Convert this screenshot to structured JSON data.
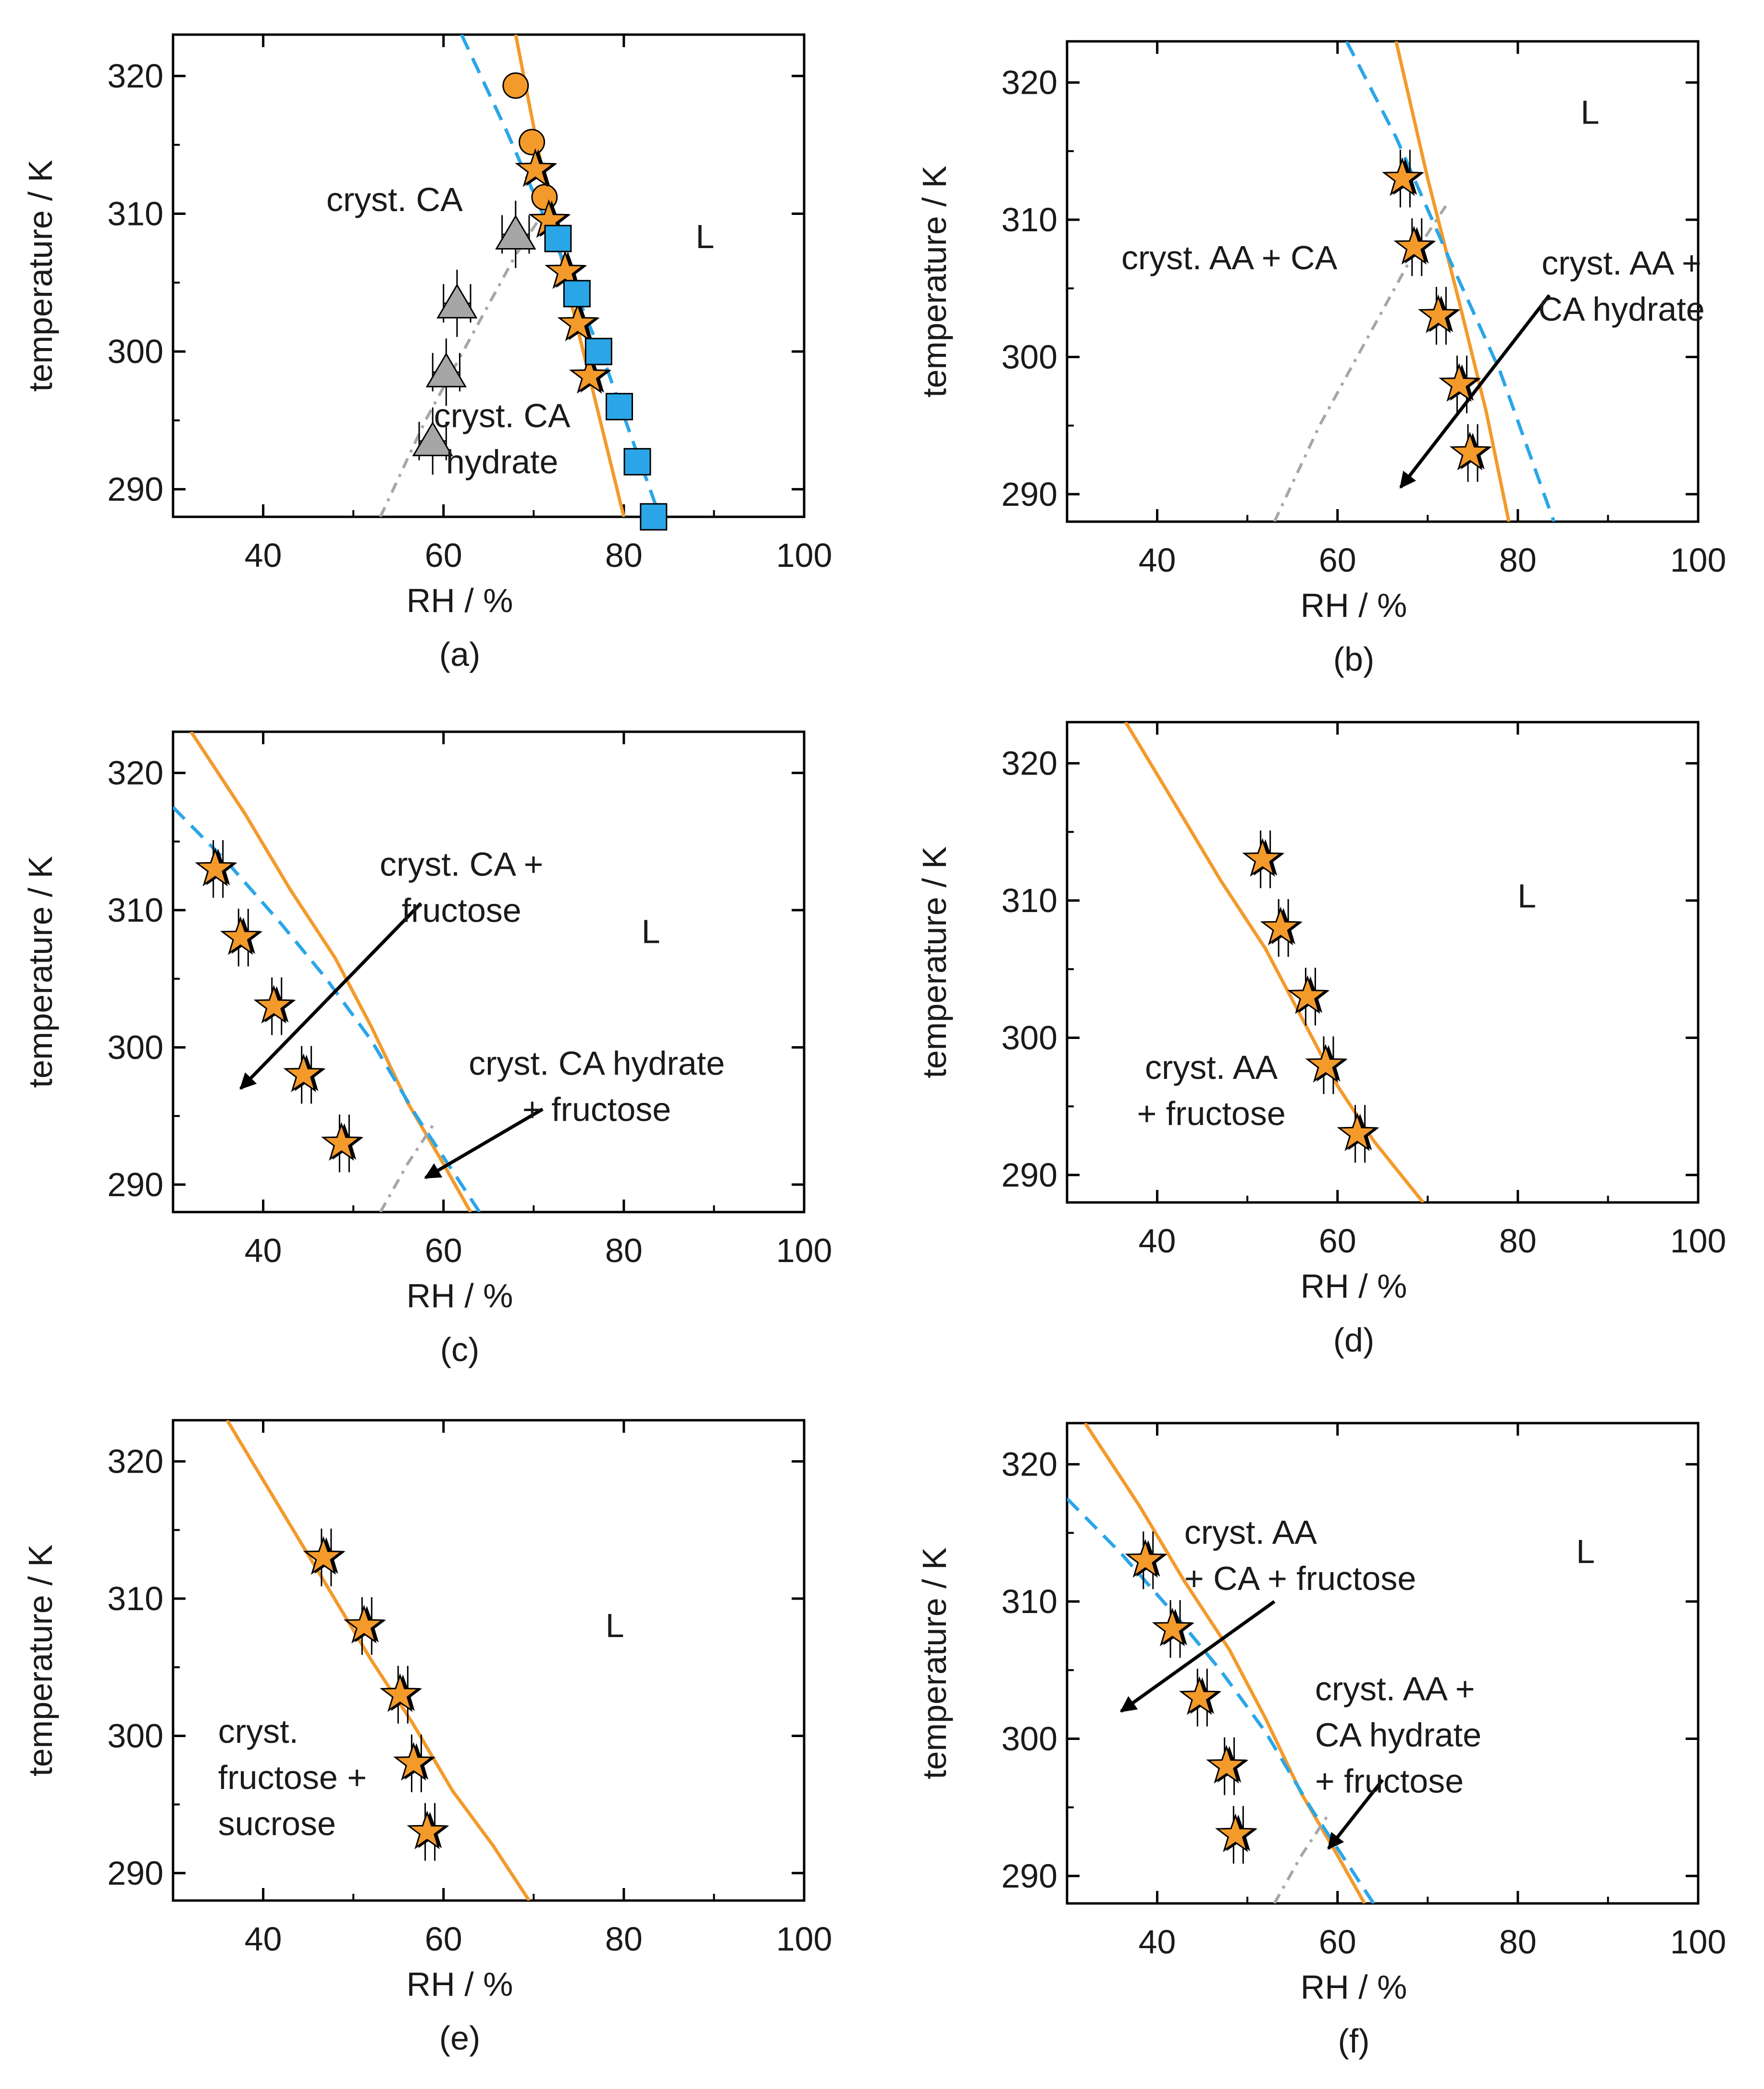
{
  "figure": {
    "palette": {
      "orange": "#f39a2b",
      "blue": "#2aa6e8",
      "grey": "#a6a6a6",
      "black": "#000000"
    }
  },
  "chart_data": [
    {
      "id": "a",
      "type": "scatter",
      "caption": "(a)",
      "xlabel": "RH / %",
      "ylabel": "temperature / K",
      "xlim": [
        30,
        100
      ],
      "ylim": [
        288,
        323
      ],
      "xticks": [
        40,
        60,
        80,
        100
      ],
      "yticks": [
        290,
        300,
        310,
        320
      ],
      "lines": [
        {
          "name": "orange-solid",
          "color": "#f39a2b",
          "dash": "solid",
          "points": [
            [
              68,
              323
            ],
            [
              71,
              313
            ],
            [
              74,
              304
            ],
            [
              77,
              296
            ],
            [
              80,
              288
            ]
          ]
        },
        {
          "name": "blue-dashed",
          "color": "#2aa6e8",
          "dash": "dashed",
          "points": [
            [
              62,
              323
            ],
            [
              67,
              316
            ],
            [
              73,
              307
            ],
            [
              78,
              299
            ],
            [
              84,
              288
            ]
          ]
        },
        {
          "name": "grey-dashdot",
          "color": "#a6a6a6",
          "dash": "dashdot",
          "points": [
            [
              53,
              288
            ],
            [
              58,
              295
            ],
            [
              63,
              301
            ],
            [
              68,
              307
            ],
            [
              72,
              311
            ]
          ]
        }
      ],
      "series": [
        {
          "name": "orange-circles",
          "marker": "circle",
          "color": "#f39a2b",
          "points": [
            [
              68,
              319.3
            ],
            [
              69.8,
              315.2
            ],
            [
              71.2,
              311.2
            ]
          ],
          "xerr": 0
        },
        {
          "name": "orange-stars",
          "marker": "star",
          "color": "#f39a2b",
          "points": [
            [
              70.5,
              313.2
            ],
            [
              72,
              309.5
            ],
            [
              73.8,
              305.8
            ],
            [
              75.2,
              302
            ],
            [
              76.5,
              298.2
            ]
          ],
          "xerr": 0
        },
        {
          "name": "blue-squares",
          "marker": "square",
          "color": "#2aa6e8",
          "points": [
            [
              72.7,
              308.2
            ],
            [
              74.8,
              304.2
            ],
            [
              77.2,
              300
            ],
            [
              79.5,
              296
            ],
            [
              81.5,
              292
            ],
            [
              83.3,
              288
            ]
          ],
          "xerr": 0
        },
        {
          "name": "grey-triangles",
          "marker": "triangle",
          "color": "#a6a6a6",
          "points": [
            [
              68,
              308.5
            ],
            [
              61.5,
              303.5
            ],
            [
              60.3,
              298.5
            ],
            [
              58.8,
              293.5
            ]
          ],
          "xerr": 1.5
        }
      ],
      "annotations": [
        {
          "lines": [
            "cryst. CA"
          ],
          "x": 47,
          "y": 310.2,
          "anchor": "start"
        },
        {
          "lines": [
            "L"
          ],
          "x": 89,
          "y": 307.5,
          "anchor": "middle"
        },
        {
          "lines": [
            "cryst. CA",
            "hydrate"
          ],
          "x": 66.5,
          "y": 294.5,
          "anchor": "middle"
        }
      ],
      "arrows": []
    },
    {
      "id": "b",
      "type": "scatter",
      "caption": "(b)",
      "xlabel": "RH / %",
      "ylabel": "temperature / K",
      "xlim": [
        30,
        100
      ],
      "ylim": [
        288,
        323
      ],
      "xticks": [
        40,
        60,
        80,
        100
      ],
      "yticks": [
        290,
        300,
        310,
        320
      ],
      "lines": [
        {
          "name": "orange-solid",
          "color": "#f39a2b",
          "dash": "solid",
          "points": [
            [
              66.5,
              323
            ],
            [
              70,
              313
            ],
            [
              73.5,
              304
            ],
            [
              76.5,
              296
            ],
            [
              79,
              288
            ]
          ]
        },
        {
          "name": "blue-dashed",
          "color": "#2aa6e8",
          "dash": "dashed",
          "points": [
            [
              61,
              323
            ],
            [
              66.5,
              316
            ],
            [
              72.5,
              307
            ],
            [
              78,
              299
            ],
            [
              84,
              288
            ]
          ]
        },
        {
          "name": "grey-dashdot",
          "color": "#a6a6a6",
          "dash": "dashdot",
          "points": [
            [
              53,
              288
            ],
            [
              58,
              295
            ],
            [
              63,
              301
            ],
            [
              68,
              307
            ],
            [
              72,
              311
            ]
          ]
        }
      ],
      "series": [
        {
          "name": "orange-stars",
          "marker": "star",
          "color": "#f39a2b",
          "points": [
            [
              67.5,
              313
            ],
            [
              68.8,
              308
            ],
            [
              71.5,
              303
            ],
            [
              73.8,
              298
            ],
            [
              75,
              293
            ]
          ],
          "xerr": 1
        }
      ],
      "annotations": [
        {
          "lines": [
            "L"
          ],
          "x": 88,
          "y": 317,
          "anchor": "middle"
        },
        {
          "lines": [
            "cryst. AA + CA"
          ],
          "x": 48,
          "y": 306.4,
          "anchor": "middle"
        },
        {
          "lines": [
            "cryst. AA +",
            "CA hydrate"
          ],
          "x": 91.5,
          "y": 306,
          "anchor": "middle"
        }
      ],
      "arrows": [
        {
          "from": [
            83.5,
            304.5
          ],
          "to": [
            67,
            290.5
          ]
        }
      ]
    },
    {
      "id": "c",
      "type": "scatter",
      "caption": "(c)",
      "xlabel": "RH / %",
      "ylabel": "temperature / K",
      "xlim": [
        30,
        100
      ],
      "ylim": [
        288,
        323
      ],
      "xticks": [
        40,
        60,
        80,
        100
      ],
      "yticks": [
        290,
        300,
        310,
        320
      ],
      "lines": [
        {
          "name": "orange-solid",
          "color": "#f39a2b",
          "dash": "solid",
          "points": [
            [
              32,
              323
            ],
            [
              38,
              317
            ],
            [
              43,
              311.5
            ],
            [
              48,
              306.5
            ],
            [
              52,
              301.5
            ],
            [
              56,
              296
            ],
            [
              60,
              291.5
            ],
            [
              63,
              288
            ]
          ]
        },
        {
          "name": "blue-dashed",
          "color": "#2aa6e8",
          "dash": "dashed",
          "points": [
            [
              30,
              317.5
            ],
            [
              36,
              313.5
            ],
            [
              42,
              309
            ],
            [
              47,
              305
            ],
            [
              52,
              300.5
            ],
            [
              57,
              295
            ],
            [
              61,
              291
            ],
            [
              64,
              288
            ]
          ]
        },
        {
          "name": "grey-dashdot",
          "color": "#a6a6a6",
          "dash": "dashdot",
          "points": [
            [
              53,
              288
            ],
            [
              56,
              291.5
            ],
            [
              59,
              294.5
            ]
          ]
        }
      ],
      "series": [
        {
          "name": "orange-stars",
          "marker": "star",
          "color": "#f39a2b",
          "points": [
            [
              35,
              313
            ],
            [
              37.8,
              308
            ],
            [
              41.5,
              303
            ],
            [
              44.8,
              298
            ],
            [
              49,
              293
            ]
          ],
          "xerr": 1
        }
      ],
      "annotations": [
        {
          "lines": [
            "cryst. CA +",
            "fructose"
          ],
          "x": 62,
          "y": 312.5,
          "anchor": "middle"
        },
        {
          "lines": [
            "L"
          ],
          "x": 83,
          "y": 307.6,
          "anchor": "middle"
        },
        {
          "lines": [
            "cryst. CA hydrate",
            "+ fructose"
          ],
          "x": 77,
          "y": 298,
          "anchor": "middle"
        }
      ],
      "arrows": [
        {
          "from": [
            57.5,
            310.5
          ],
          "to": [
            37.5,
            297
          ]
        },
        {
          "from": [
            71,
            295.5
          ],
          "to": [
            58,
            290.5
          ]
        }
      ]
    },
    {
      "id": "d",
      "type": "scatter",
      "caption": "(d)",
      "xlabel": "RH / %",
      "ylabel": "temperature / K",
      "xlim": [
        30,
        100
      ],
      "ylim": [
        288,
        323
      ],
      "xticks": [
        40,
        60,
        80,
        100
      ],
      "yticks": [
        290,
        300,
        310,
        320
      ],
      "lines": [
        {
          "name": "orange-solid",
          "color": "#f39a2b",
          "dash": "solid",
          "points": [
            [
              36.5,
              323
            ],
            [
              42,
              317
            ],
            [
              47,
              311.5
            ],
            [
              52,
              306.5
            ],
            [
              56,
              301.5
            ],
            [
              60,
              296.5
            ],
            [
              64,
              292.5
            ],
            [
              69.5,
              288
            ]
          ]
        }
      ],
      "series": [
        {
          "name": "orange-stars",
          "marker": "star",
          "color": "#f39a2b",
          "points": [
            [
              52,
              313
            ],
            [
              54,
              308
            ],
            [
              57,
              303
            ],
            [
              59,
              298
            ],
            [
              62.5,
              293
            ]
          ],
          "xerr": 1
        }
      ],
      "annotations": [
        {
          "lines": [
            "L"
          ],
          "x": 81,
          "y": 309.5,
          "anchor": "middle"
        },
        {
          "lines": [
            "cryst. AA",
            "+ fructose"
          ],
          "x": 46,
          "y": 297,
          "anchor": "middle"
        }
      ],
      "arrows": []
    },
    {
      "id": "e",
      "type": "scatter",
      "caption": "(e)",
      "xlabel": "RH / %",
      "ylabel": "temperature / K",
      "xlim": [
        30,
        100
      ],
      "ylim": [
        288,
        323
      ],
      "xticks": [
        40,
        60,
        80,
        100
      ],
      "yticks": [
        290,
        300,
        310,
        320
      ],
      "lines": [
        {
          "name": "orange-solid",
          "color": "#f39a2b",
          "dash": "solid",
          "points": [
            [
              36,
              323
            ],
            [
              41.5,
              317
            ],
            [
              47,
              311
            ],
            [
              52,
              305.5
            ],
            [
              56.5,
              301
            ],
            [
              61,
              296
            ],
            [
              65.5,
              292
            ],
            [
              69.5,
              288
            ]
          ]
        }
      ],
      "series": [
        {
          "name": "orange-stars",
          "marker": "star",
          "color": "#f39a2b",
          "points": [
            [
              47,
              313
            ],
            [
              51.5,
              308
            ],
            [
              55.5,
              303
            ],
            [
              57,
              298
            ],
            [
              58.5,
              293
            ]
          ],
          "xerr": 1
        }
      ],
      "annotations": [
        {
          "lines": [
            "L"
          ],
          "x": 79,
          "y": 307.2,
          "anchor": "middle"
        },
        {
          "lines": [
            "cryst.",
            "fructose +",
            "sucrose"
          ],
          "x": 35,
          "y": 299.5,
          "anchor": "start"
        }
      ],
      "arrows": []
    },
    {
      "id": "f",
      "type": "scatter",
      "caption": "(f)",
      "xlabel": "RH / %",
      "ylabel": "temperature / K",
      "xlim": [
        30,
        100
      ],
      "ylim": [
        288,
        323
      ],
      "xticks": [
        40,
        60,
        80,
        100
      ],
      "yticks": [
        290,
        300,
        310,
        320
      ],
      "lines": [
        {
          "name": "orange-solid",
          "color": "#f39a2b",
          "dash": "solid",
          "points": [
            [
              32,
              323
            ],
            [
              38,
              317
            ],
            [
              43,
              311.5
            ],
            [
              48,
              306.5
            ],
            [
              52,
              301.5
            ],
            [
              56,
              296
            ],
            [
              60,
              291.5
            ],
            [
              63,
              288
            ]
          ]
        },
        {
          "name": "blue-dashed",
          "color": "#2aa6e8",
          "dash": "dashed",
          "points": [
            [
              30,
              317.5
            ],
            [
              36,
              313.5
            ],
            [
              42,
              309
            ],
            [
              47,
              305
            ],
            [
              52,
              300.5
            ],
            [
              57,
              295
            ],
            [
              61,
              291
            ],
            [
              64,
              288
            ]
          ]
        },
        {
          "name": "grey-dashdot",
          "color": "#a6a6a6",
          "dash": "dashdot",
          "points": [
            [
              53,
              288
            ],
            [
              56,
              291.5
            ],
            [
              59,
              294.5
            ]
          ]
        }
      ],
      "series": [
        {
          "name": "orange-stars",
          "marker": "star",
          "color": "#f39a2b",
          "points": [
            [
              39,
              313
            ],
            [
              42,
              308
            ],
            [
              45,
              303
            ],
            [
              48,
              298
            ],
            [
              49,
              293
            ]
          ],
          "xerr": 1
        }
      ],
      "annotations": [
        {
          "lines": [
            "cryst. AA",
            "+ CA + fructose"
          ],
          "x": 43,
          "y": 314.2,
          "anchor": "start"
        },
        {
          "lines": [
            "L"
          ],
          "x": 87.5,
          "y": 312.8,
          "anchor": "middle"
        },
        {
          "lines": [
            "cryst. AA +",
            "CA hydrate",
            "+ fructose"
          ],
          "x": 57.5,
          "y": 302.8,
          "anchor": "start"
        }
      ],
      "arrows": [
        {
          "from": [
            53,
            310
          ],
          "to": [
            36,
            302
          ]
        },
        {
          "from": [
            65,
            297
          ],
          "to": [
            59,
            292
          ]
        }
      ]
    }
  ]
}
